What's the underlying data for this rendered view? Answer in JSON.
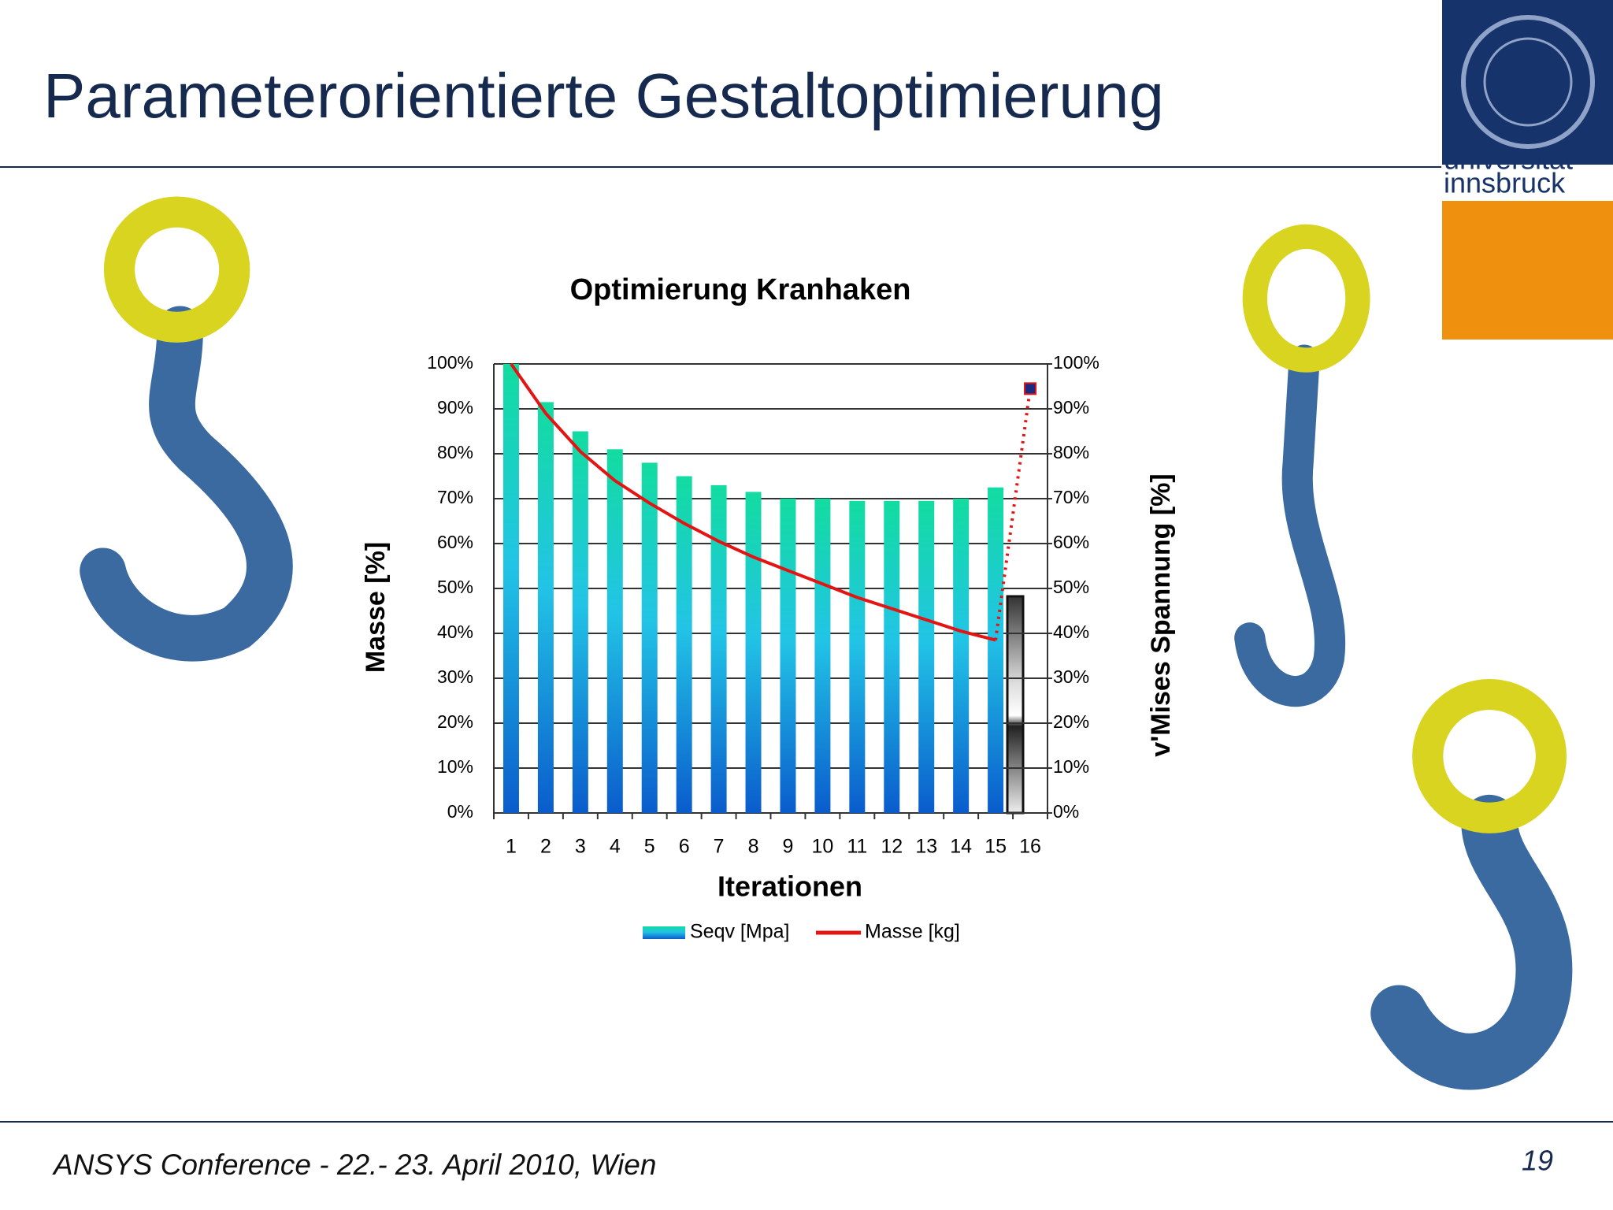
{
  "slide": {
    "title": "Parameterorientierte Gestaltoptimierung",
    "footer": "ANSYS Conference  - 22.- 23. April 2010, Wien",
    "page": "19",
    "logo_line1": "universität",
    "logo_line2": "innsbruck"
  },
  "chart_data": {
    "type": "bar_line",
    "title": "Optimierung Kranhaken",
    "x_label": "Iterationen",
    "y_label": "Masse [%]",
    "y2_label": "v'Mises Spannung [%]",
    "categories": [
      "1",
      "2",
      "3",
      "4",
      "5",
      "6",
      "7",
      "8",
      "9",
      "10",
      "11",
      "12",
      "13",
      "14",
      "15",
      "16"
    ],
    "series": [
      {
        "name": "Seqv [Mpa]",
        "type": "bar",
        "axis": "y2",
        "color": "#1fc8dc",
        "values": [
          100,
          91.5,
          85,
          81,
          78,
          75,
          73,
          71.5,
          70,
          70,
          69.5,
          69.5,
          69.5,
          70,
          72.5,
          null
        ]
      },
      {
        "name": "Masse [kg]",
        "type": "line",
        "color": "#e31414",
        "values": [
          100,
          89,
          80.5,
          74,
          69,
          64.5,
          60.5,
          57,
          54,
          51,
          48,
          45.5,
          43,
          40.5,
          38.5,
          94.5
        ]
      }
    ],
    "ylim": [
      0,
      100
    ],
    "y2lim": [
      0,
      100
    ],
    "yticks": [
      {
        "value": 0,
        "label": "0%"
      },
      {
        "value": 10,
        "label": "10%"
      },
      {
        "value": 20,
        "label": "20%"
      },
      {
        "value": 30,
        "label": "30%"
      },
      {
        "value": 40,
        "label": "40%"
      },
      {
        "value": 50,
        "label": "50%"
      },
      {
        "value": 60,
        "label": "60%"
      },
      {
        "value": 70,
        "label": "70%"
      },
      {
        "value": 80,
        "label": "80%"
      },
      {
        "value": 90,
        "label": "90%"
      },
      {
        "value": 100,
        "label": "100%"
      }
    ],
    "y2ticks": [
      {
        "value": 0,
        "label": "0%"
      },
      {
        "value": 10,
        "label": "10%"
      },
      {
        "value": 20,
        "label": "20%"
      },
      {
        "value": 30,
        "label": "30%"
      },
      {
        "value": 40,
        "label": "40%"
      },
      {
        "value": 50,
        "label": "50%"
      },
      {
        "value": 60,
        "label": "60%"
      },
      {
        "value": 70,
        "label": "70%"
      },
      {
        "value": 80,
        "label": "80%"
      },
      {
        "value": 90,
        "label": "90%"
      },
      {
        "value": 100,
        "label": "100%"
      }
    ],
    "grid": true,
    "legend": "bottom"
  }
}
